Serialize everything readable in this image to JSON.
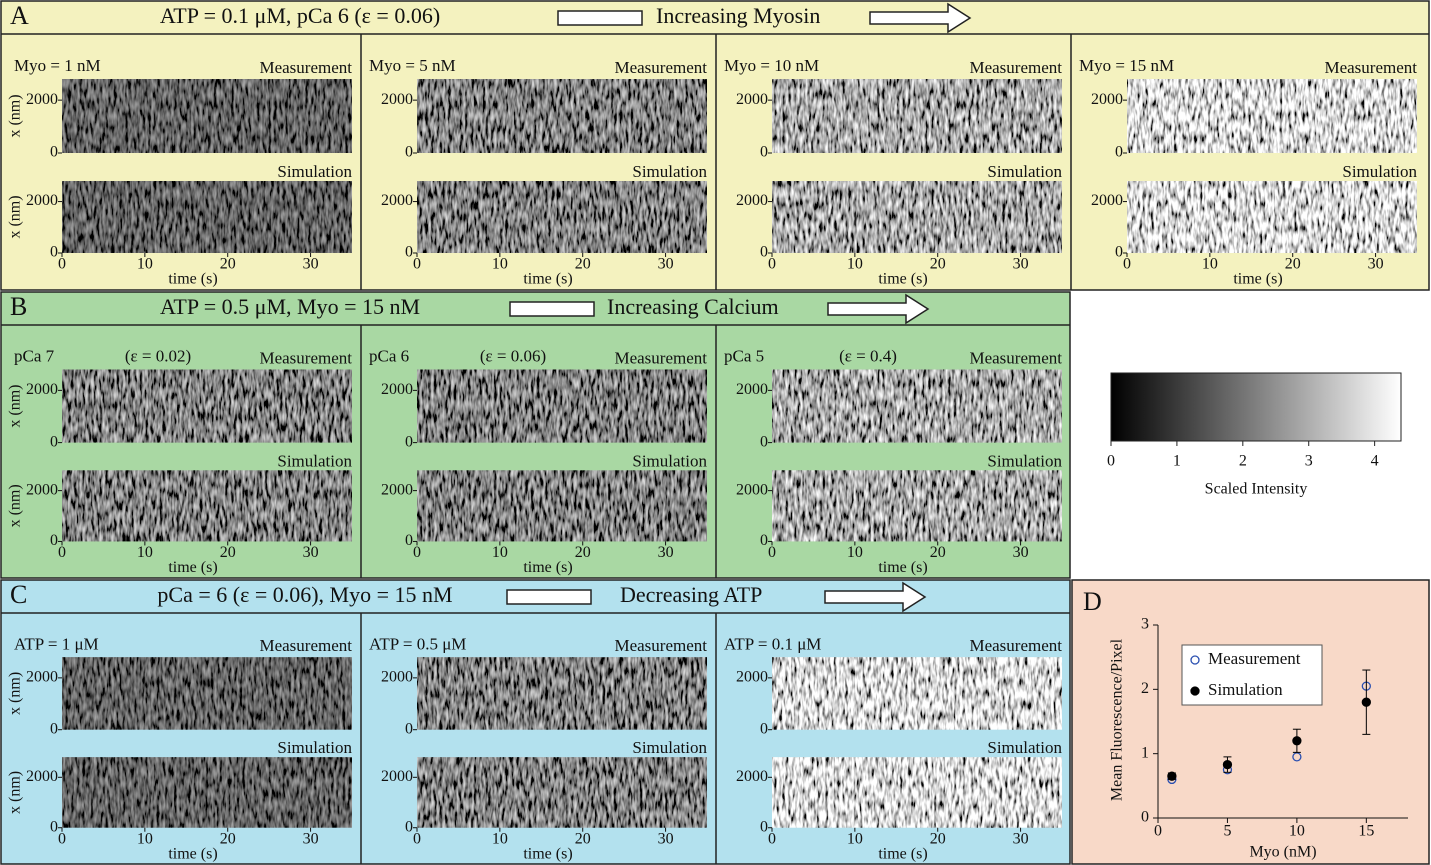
{
  "figure": {
    "panels": [
      {
        "letter": "A",
        "condition": "ATP = 0.1 μM, pCa 6 (ε = 0.06)",
        "arrow_label": "Increasing Myosin",
        "columns": [
          {
            "label": "Myo = 1 nM"
          },
          {
            "label": "Myo = 5 nM"
          },
          {
            "label": "Myo = 10 nM"
          },
          {
            "label": "Myo = 15 nM"
          }
        ]
      },
      {
        "letter": "B",
        "condition": "ATP = 0.5 μM, Myo = 15 nM",
        "arrow_label": "Increasing Calcium",
        "columns": [
          {
            "label": "pCa 7",
            "epsilon": "(ε = 0.02)"
          },
          {
            "label": "pCa 6",
            "epsilon": "(ε = 0.06)"
          },
          {
            "label": "pCa 5",
            "epsilon": "(ε = 0.4)"
          }
        ]
      },
      {
        "letter": "C",
        "condition": "pCa = 6 (ε = 0.06), Myo = 15 nM",
        "arrow_label": "Decreasing ATP",
        "columns": [
          {
            "label": "ATP = 1 μM"
          },
          {
            "label": "ATP = 0.5 μM"
          },
          {
            "label": "ATP = 0.1 μM"
          }
        ]
      }
    ],
    "kymograph_axes": {
      "top_label": "Measurement",
      "bottom_label": "Simulation",
      "xlabel": "time (s)",
      "ylabel": "x (nm)",
      "xlim": [
        0,
        35
      ],
      "ylim": [
        0,
        2800
      ],
      "xticks": [
        0,
        10,
        20,
        30
      ],
      "yticks": [
        0,
        2000
      ]
    },
    "colorbar": {
      "label": "Scaled Intensity",
      "lim": [
        0,
        4.4
      ],
      "ticks": [
        0,
        1,
        2,
        3,
        4
      ]
    }
  },
  "chart_data": {
    "type": "scatter",
    "letter": "D",
    "xlabel": "Myo (nM)",
    "ylabel": "Mean Fluorescence/Pixel",
    "x": [
      1,
      5,
      10,
      15
    ],
    "xlim": [
      0,
      18
    ],
    "ylim": [
      0,
      3
    ],
    "xticks": [
      0,
      5,
      10,
      15
    ],
    "yticks": [
      0,
      1,
      2,
      3
    ],
    "legend": "upper left",
    "series": [
      {
        "name": "Measurement",
        "color": "#2a4fb0",
        "marker": "open",
        "values": [
          0.6,
          0.75,
          0.95,
          2.05
        ]
      },
      {
        "name": "Simulation",
        "color": "#000000",
        "marker": "filled",
        "values": [
          0.65,
          0.83,
          1.2,
          1.8
        ],
        "errors": [
          0.05,
          0.12,
          0.18,
          0.5
        ]
      }
    ]
  }
}
